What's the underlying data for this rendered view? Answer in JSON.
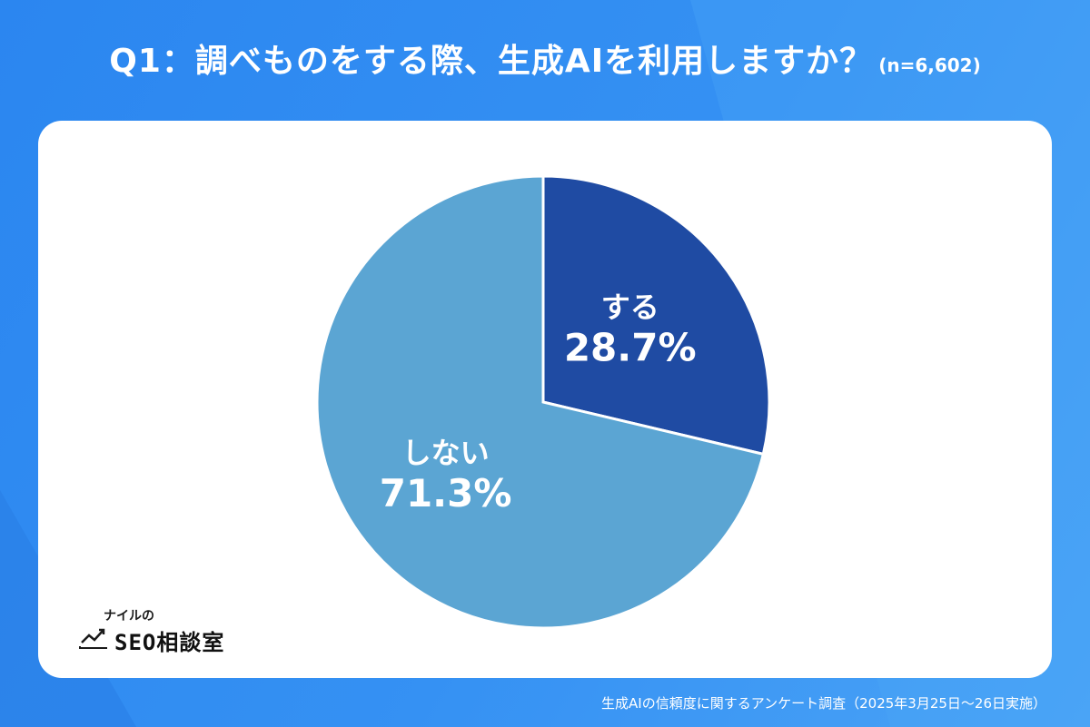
{
  "header": {
    "title": "Q1：調べものをする際、生成AIを利用しますか？",
    "sample_size": "(n=6,602)"
  },
  "chart_data": {
    "type": "pie",
    "title": "Q1：調べものをする際、生成AIを利用しますか？",
    "slices": [
      {
        "label": "する",
        "value": 28.7,
        "value_label": "28.7%",
        "color": "#1f4ba3"
      },
      {
        "label": "しない",
        "value": 71.3,
        "value_label": "71.3%",
        "color": "#5ba5d3"
      }
    ]
  },
  "logo": {
    "small_text": "ナイルの",
    "main_text": "SEO相談室",
    "icon": "trend-line-icon"
  },
  "footer": {
    "source": "生成AIの信頼度に関するアンケート調査（2025年3月25日〜26日実施）"
  },
  "colors": {
    "background": "#2b86f0",
    "card": "#ffffff"
  }
}
